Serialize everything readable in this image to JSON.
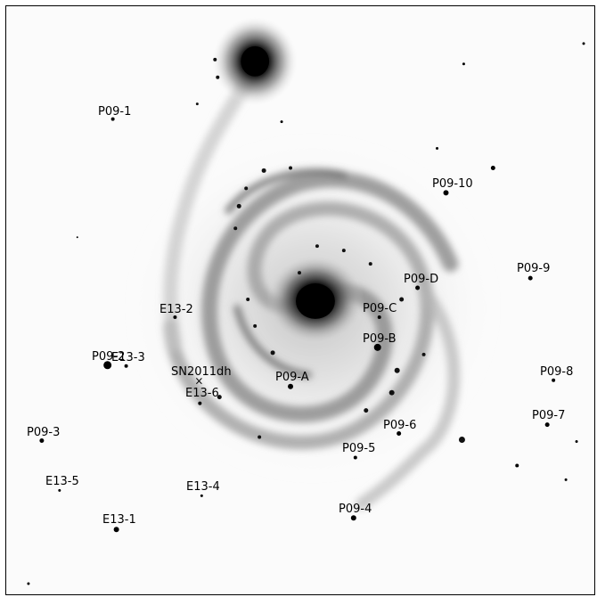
{
  "image": {
    "kind": "astronomical negative image",
    "colors": {
      "background": "#fbfbfb",
      "ink": "#000000",
      "frame": "#000000"
    }
  },
  "labels": {
    "p09_1": "P09-1",
    "p09_10": "P09-10",
    "p09_9": "P09-9",
    "p09_d": "P09-D",
    "p09_c": "P09-C",
    "e13_2": "E13-2",
    "p09_b": "P09-B",
    "p09_2": "P09-2",
    "e13_3": "E13-3",
    "sn2011dh": "SN2011dh",
    "p09_a": "P09-A",
    "e13_6": "E13-6",
    "p09_8": "P09-8",
    "p09_7": "P09-7",
    "p09_3": "P09-3",
    "p09_6": "P09-6",
    "p09_5": "P09-5",
    "e13_5": "E13-5",
    "e13_4": "E13-4",
    "p09_4": "P09-4",
    "e13_1": "E13-1"
  },
  "marker_symbol": "×"
}
